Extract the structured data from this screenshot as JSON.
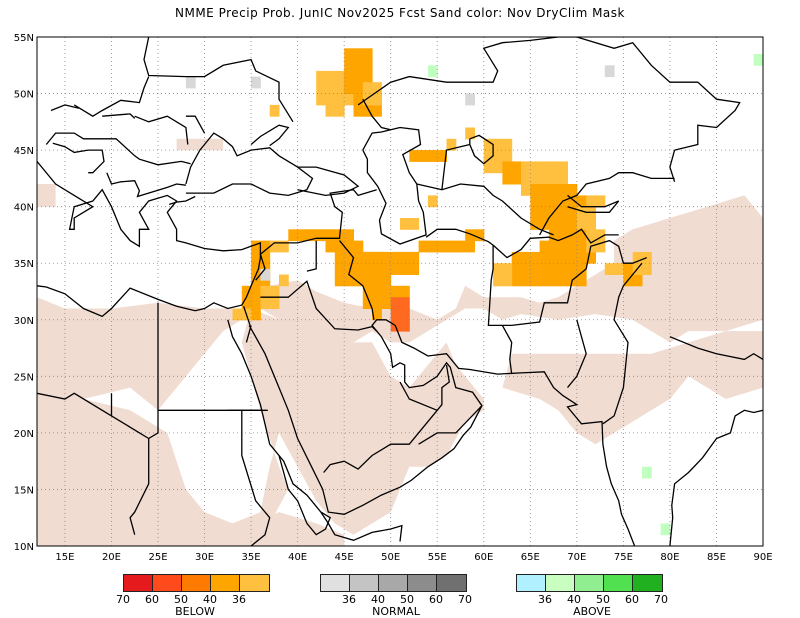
{
  "title": "NMME Precip Prob. JunIC  Nov2025 Fcst  Sand color: Nov DryClim Mask",
  "map": {
    "lon_range": [
      12,
      90
    ],
    "lat_range": [
      10,
      55
    ],
    "lat_labels": [
      "55N",
      "50N",
      "45N",
      "40N",
      "35N",
      "30N",
      "25N",
      "20N",
      "15N",
      "10N"
    ],
    "lon_labels": [
      "15E",
      "20E",
      "25E",
      "30E",
      "35E",
      "40E",
      "45E",
      "50E",
      "55E",
      "60E",
      "65E",
      "70E",
      "75E",
      "80E",
      "85E",
      "90E"
    ],
    "colors": {
      "sand": "#f1dcd2",
      "below_36": "#ffc040",
      "below_40": "#ffa500",
      "below_50": "#ff6a20",
      "normal_36": "#d8d8d8",
      "above_36": "#c0ffc0",
      "grid": "#888888",
      "coast": "#000000"
    }
  },
  "legends": {
    "below": {
      "label": "BELOW",
      "ticks": [
        "70",
        "60",
        "50",
        "40",
        "36"
      ],
      "colors": [
        "#e41a1c",
        "#ff4a1c",
        "#ff7a00",
        "#ffa500",
        "#ffc040"
      ]
    },
    "normal": {
      "label": "NORMAL",
      "ticks": [
        "36",
        "40",
        "50",
        "60",
        "70"
      ],
      "colors": [
        "#e0e0e0",
        "#c4c4c4",
        "#a8a8a8",
        "#8c8c8c",
        "#707070"
      ]
    },
    "above": {
      "label": "ABOVE",
      "ticks": [
        "36",
        "40",
        "50",
        "60",
        "70"
      ],
      "colors": [
        "#b0f0ff",
        "#c8ffc0",
        "#90ee90",
        "#50e050",
        "#20b020"
      ]
    }
  }
}
